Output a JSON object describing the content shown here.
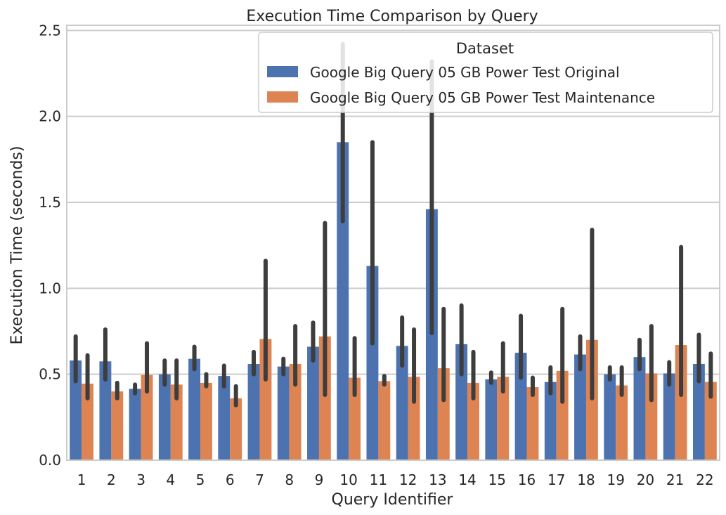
{
  "chart_data": {
    "type": "bar",
    "title": "Execution Time Comparison by Query",
    "xlabel": "Query Identifier",
    "ylabel": "Execution Time (seconds)",
    "ylim": [
      0,
      2.53
    ],
    "yticks": [
      "0.0",
      "0.5",
      "1.0",
      "1.5",
      "2.0",
      "2.5"
    ],
    "grid": true,
    "legend": {
      "title": "Dataset",
      "placement": "top-right"
    },
    "categories": [
      "1",
      "2",
      "3",
      "4",
      "5",
      "6",
      "7",
      "8",
      "9",
      "10",
      "11",
      "12",
      "13",
      "14",
      "15",
      "16",
      "17",
      "18",
      "19",
      "20",
      "21",
      "22"
    ],
    "series": [
      {
        "name": "Google Big Query 05 GB Power Test Original",
        "color": "#4c72b0",
        "values": [
          0.58,
          0.575,
          0.415,
          0.5,
          0.59,
          0.49,
          0.56,
          0.545,
          0.66,
          1.85,
          1.13,
          0.665,
          1.46,
          0.675,
          0.47,
          0.625,
          0.455,
          0.615,
          0.5,
          0.6,
          0.505,
          0.56
        ],
        "error_low": [
          0.46,
          0.47,
          0.39,
          0.44,
          0.53,
          0.43,
          0.5,
          0.5,
          0.58,
          1.39,
          0.68,
          0.55,
          0.74,
          0.5,
          0.45,
          0.48,
          0.39,
          0.53,
          0.47,
          0.53,
          0.44,
          0.46
        ],
        "error_high": [
          0.72,
          0.76,
          0.44,
          0.58,
          0.66,
          0.55,
          0.63,
          0.59,
          0.8,
          2.42,
          1.85,
          0.83,
          2.32,
          0.9,
          0.51,
          0.84,
          0.54,
          0.72,
          0.54,
          0.7,
          0.57,
          0.73
        ]
      },
      {
        "name": "Google Big Query 05 GB Power Test Maintenance",
        "color": "#dd8452",
        "values": [
          0.445,
          0.4,
          0.495,
          0.44,
          0.45,
          0.36,
          0.705,
          0.56,
          0.72,
          0.48,
          0.46,
          0.485,
          0.535,
          0.45,
          0.485,
          0.425,
          0.52,
          0.7,
          0.435,
          0.505,
          0.67,
          0.455
        ],
        "error_low": [
          0.36,
          0.36,
          0.4,
          0.36,
          0.43,
          0.32,
          0.47,
          0.44,
          0.38,
          0.38,
          0.44,
          0.34,
          0.35,
          0.36,
          0.4,
          0.38,
          0.34,
          0.36,
          0.38,
          0.35,
          0.38,
          0.37
        ],
        "error_high": [
          0.61,
          0.45,
          0.68,
          0.58,
          0.5,
          0.43,
          1.16,
          0.78,
          1.38,
          0.71,
          0.49,
          0.76,
          0.88,
          0.63,
          0.68,
          0.48,
          0.88,
          1.34,
          0.54,
          0.78,
          1.24,
          0.62
        ]
      }
    ]
  }
}
